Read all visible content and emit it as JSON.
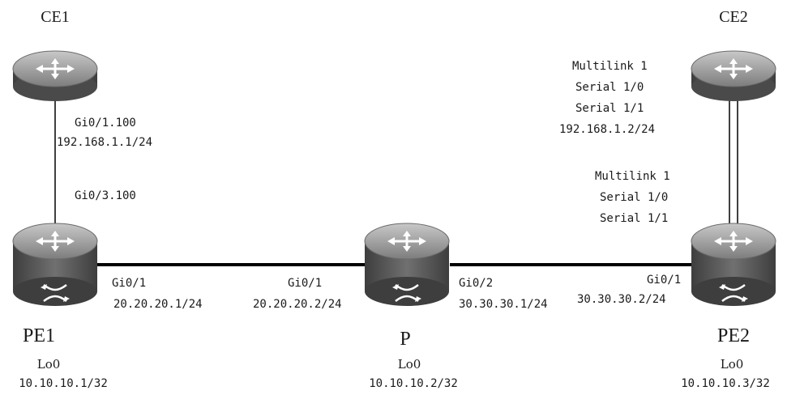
{
  "devices": {
    "ce1": {
      "name": "CE1"
    },
    "ce2": {
      "name": "CE2"
    },
    "pe1": {
      "name": "PE1",
      "loopback": "Lo0",
      "loopback_ip": "10.10.10.1/32"
    },
    "p": {
      "name": "P",
      "loopback": "Lo0",
      "loopback_ip": "10.10.10.2/32"
    },
    "pe2": {
      "name": "PE2",
      "loopback": "Lo0",
      "loopback_ip": "10.10.10.3/32"
    }
  },
  "links": {
    "ce1_pe1": {
      "ce1_if": "Gi0/1.100",
      "ce1_ip": "192.168.1.1/24",
      "pe1_if": "Gi0/3.100"
    },
    "pe1_p": {
      "pe1_if": "Gi0/1",
      "pe1_ip": "20.20.20.1/24",
      "p_if": "Gi0/1",
      "p_ip": "20.20.20.2/24"
    },
    "p_pe2": {
      "p_if": "Gi0/2",
      "p_ip": "30.30.30.1/24",
      "pe2_if": "Gi0/1",
      "pe2_ip": "30.30.30.2/24"
    },
    "ce2_pe2": {
      "ce2_multilink": "Multilink 1",
      "ce2_serial0": "Serial 1/0",
      "ce2_serial1": "Serial 1/1",
      "ce2_ip": "192.168.1.2/24",
      "pe2_multilink": "Multilink 1",
      "pe2_serial0": "Serial 1/0",
      "pe2_serial1": "Serial 1/1"
    }
  },
  "style": {
    "device_top": "#9a9a9a",
    "device_body": "#5a5a5a",
    "link_color": "#000000"
  }
}
